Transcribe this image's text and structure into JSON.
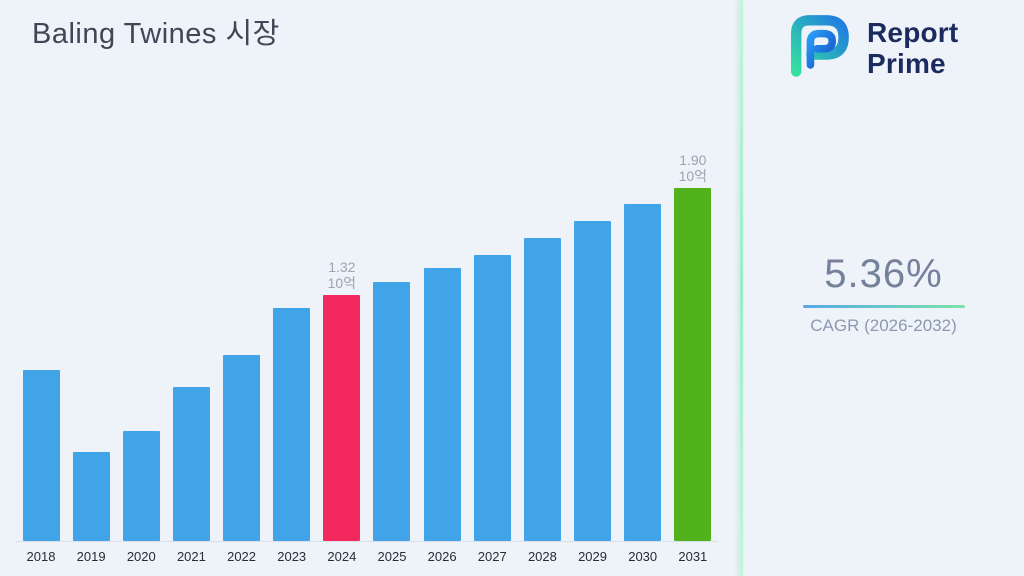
{
  "title": "Baling Twines 시장",
  "logo": {
    "line1": "Report",
    "line2": "Prime"
  },
  "stats": {
    "value": "5.36%",
    "label": "CAGR (2026-2032)"
  },
  "chart_data": {
    "type": "bar",
    "title": "Baling Twines 시장",
    "xlabel": "",
    "ylabel": "",
    "unit": "10억",
    "ylim": [
      0,
      2.0
    ],
    "grid": false,
    "legend": false,
    "categories": [
      "2018",
      "2019",
      "2020",
      "2021",
      "2022",
      "2023",
      "2024",
      "2025",
      "2026",
      "2027",
      "2028",
      "2029",
      "2030",
      "2031"
    ],
    "values": [
      0.92,
      0.48,
      0.59,
      0.83,
      1.0,
      1.25,
      1.32,
      1.39,
      1.47,
      1.54,
      1.63,
      1.72,
      1.81,
      1.9
    ],
    "colors": {
      "default": "#41a3e8",
      "highlight": "#f3285f",
      "final": "#52b21c"
    },
    "special_colors": {
      "2024": "#f3285f",
      "2031": "#52b21c"
    },
    "annotations": [
      {
        "year": "2024",
        "value_label": "1.32",
        "unit": "10억"
      },
      {
        "year": "2031",
        "value_label": "1.90",
        "unit": "10억"
      }
    ]
  }
}
